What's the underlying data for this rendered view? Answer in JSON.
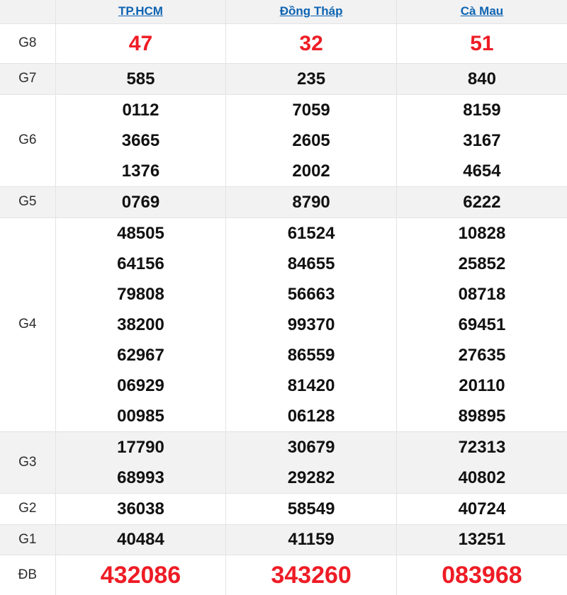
{
  "colors": {
    "red": "#ee1c25",
    "link_blue": "#0d63b1",
    "row_alt_bg": "#f2f2f3",
    "border": "#e3e3e5",
    "number": "#111111",
    "label": "#2e2e2e"
  },
  "header": {
    "corner": "",
    "columns": [
      {
        "slug": "tphcm",
        "label": "TP.HCM"
      },
      {
        "slug": "dong-thap",
        "label": "Đồng Tháp"
      },
      {
        "slug": "ca-mau",
        "label": "Cà Mau"
      }
    ]
  },
  "rows": [
    {
      "label": "G8",
      "variant": "g8",
      "columns": [
        [
          "47"
        ],
        [
          "32"
        ],
        [
          "51"
        ]
      ]
    },
    {
      "label": "G7",
      "variant": "normal",
      "columns": [
        [
          "585"
        ],
        [
          "235"
        ],
        [
          "840"
        ]
      ]
    },
    {
      "label": "G6",
      "variant": "normal",
      "columns": [
        [
          "0112",
          "3665",
          "1376"
        ],
        [
          "7059",
          "2605",
          "2002"
        ],
        [
          "8159",
          "3167",
          "4654"
        ]
      ]
    },
    {
      "label": "G5",
      "variant": "normal",
      "columns": [
        [
          "0769"
        ],
        [
          "8790"
        ],
        [
          "6222"
        ]
      ]
    },
    {
      "label": "G4",
      "variant": "normal",
      "columns": [
        [
          "48505",
          "64156",
          "79808",
          "38200",
          "62967",
          "06929",
          "00985"
        ],
        [
          "61524",
          "84655",
          "56663",
          "99370",
          "86559",
          "81420",
          "06128"
        ],
        [
          "10828",
          "25852",
          "08718",
          "69451",
          "27635",
          "20110",
          "89895"
        ]
      ]
    },
    {
      "label": "G3",
      "variant": "normal",
      "columns": [
        [
          "17790",
          "68993"
        ],
        [
          "30679",
          "29282"
        ],
        [
          "72313",
          "40802"
        ]
      ]
    },
    {
      "label": "G2",
      "variant": "normal",
      "columns": [
        [
          "36038"
        ],
        [
          "58549"
        ],
        [
          "40724"
        ]
      ]
    },
    {
      "label": "G1",
      "variant": "normal",
      "height": "42",
      "columns": [
        [
          "40484"
        ],
        [
          "41159"
        ],
        [
          "13251"
        ]
      ]
    },
    {
      "label": "ĐB",
      "variant": "db",
      "columns": [
        [
          "432086"
        ],
        [
          "343260"
        ],
        [
          "083968"
        ]
      ]
    }
  ]
}
